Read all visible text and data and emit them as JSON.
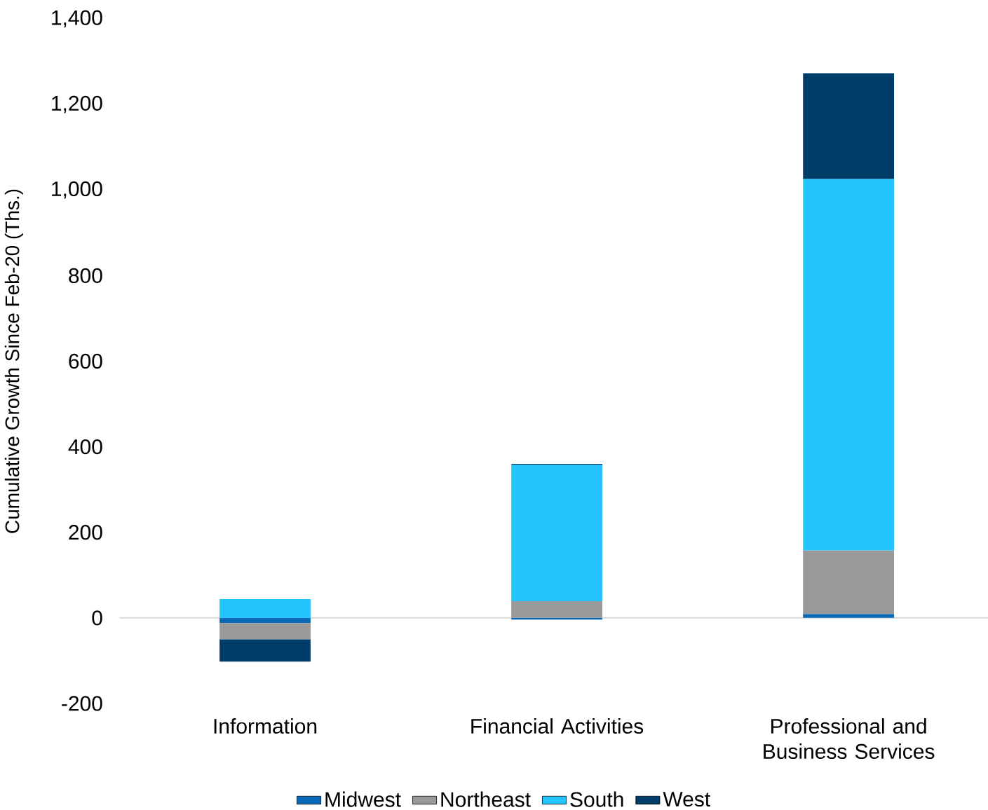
{
  "chart_data": {
    "type": "bar",
    "stacked": true,
    "ylabel": "Cumulative Growth Since Feb-20 (Ths.)",
    "categories": [
      "Information",
      "Financial Activities",
      "Professional and Business Services"
    ],
    "series": [
      {
        "name": "Midwest",
        "color": "#0a6ab8",
        "values": [
          -12,
          -4,
          9
        ]
      },
      {
        "name": "Northeast",
        "color": "#999999",
        "values": [
          -38,
          39,
          149
        ]
      },
      {
        "name": "South",
        "color": "#24c4ff",
        "values": [
          44,
          319,
          868
        ]
      },
      {
        "name": "West",
        "color": "#003d68",
        "values": [
          -52,
          2,
          247
        ]
      }
    ],
    "ylim": [
      -200,
      1400
    ],
    "yticks": [
      {
        "value": -200,
        "label": "-200"
      },
      0,
      200,
      400,
      600,
      800,
      {
        "value": 1000,
        "label": "1,000"
      },
      {
        "value": 1200,
        "label": "1,200"
      },
      {
        "value": 1400,
        "label": "1,400"
      }
    ],
    "legend": "bottom"
  }
}
